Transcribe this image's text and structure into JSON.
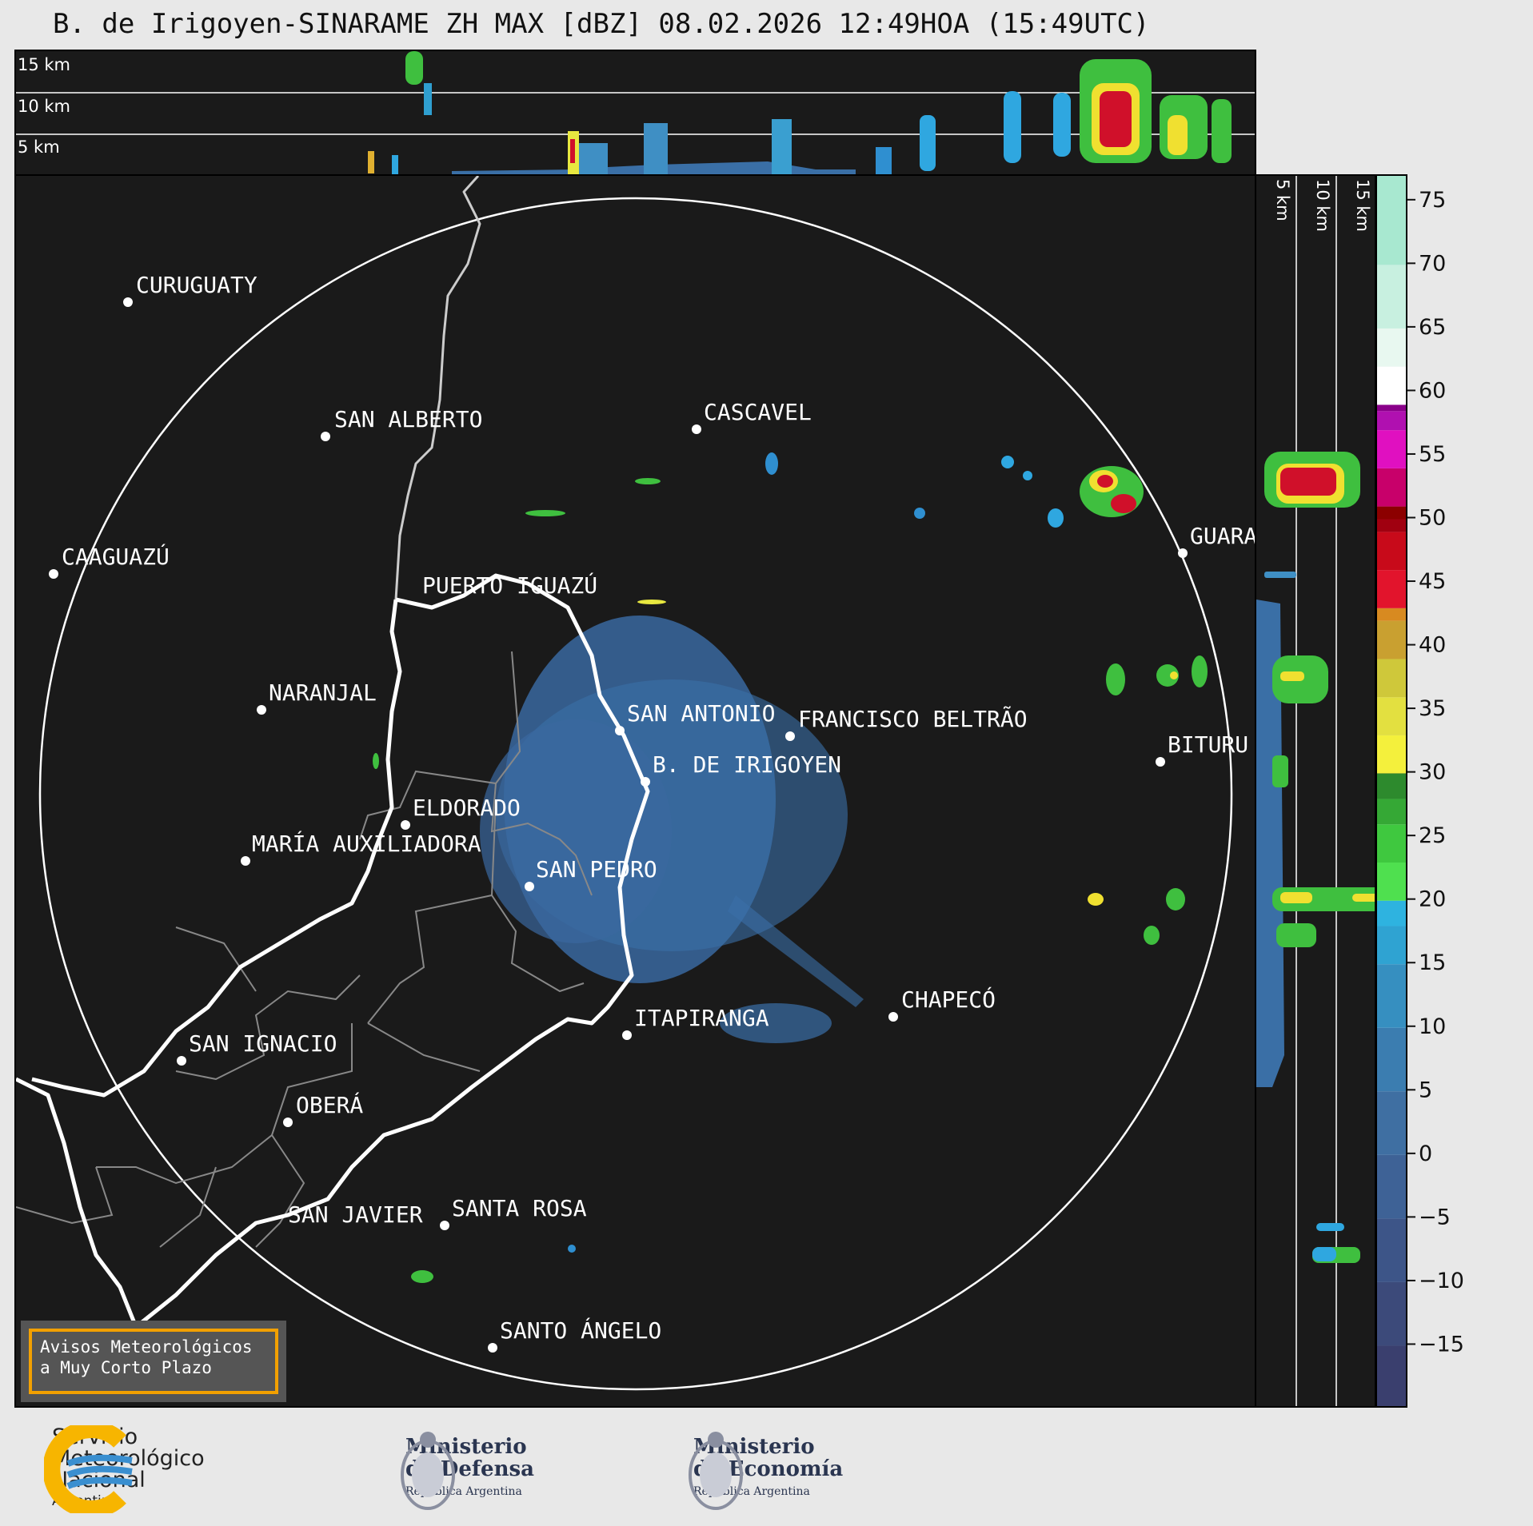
{
  "title": "B. de Irigoyen-SINARAME ZH MAX [dBZ] 08.02.2026 12:49HOA (15:49UTC)",
  "top_panel": {
    "levels": [
      "15 km",
      "10 km",
      "5 km"
    ]
  },
  "side_panel": {
    "levels": [
      "5 km",
      "10 km",
      "15 km"
    ]
  },
  "cities": [
    {
      "name": "CURUGUATY"
    },
    {
      "name": "SAN ALBERTO"
    },
    {
      "name": "CASCAVEL"
    },
    {
      "name": "CAAGUAZÚ"
    },
    {
      "name": "GUARA"
    },
    {
      "name": "PUERTO IGUAZÚ"
    },
    {
      "name": "NARANJAL"
    },
    {
      "name": "SAN ANTONIO"
    },
    {
      "name": "FRANCISCO BELTRÃO"
    },
    {
      "name": "BITURU"
    },
    {
      "name": "B. DE IRIGOYEN"
    },
    {
      "name": "ELDORADO"
    },
    {
      "name": "MARÍA AUXILIADORA"
    },
    {
      "name": "SAN PEDRO"
    },
    {
      "name": "CHAPECÓ"
    },
    {
      "name": "ITAPIRANGA"
    },
    {
      "name": "SAN IGNACIO"
    },
    {
      "name": "OBERÁ"
    },
    {
      "name": "SAN JAVIER"
    },
    {
      "name": "SANTA ROSA"
    },
    {
      "name": "SANTO ÁNGELO"
    }
  ],
  "colorbar": {
    "ticks": [
      "75",
      "70",
      "65",
      "60",
      "55",
      "50",
      "45",
      "40",
      "35",
      "30",
      "25",
      "20",
      "15",
      "10",
      "5",
      "0",
      "−5",
      "−10",
      "−15"
    ],
    "tick_values": [
      75,
      70,
      65,
      60,
      55,
      50,
      45,
      40,
      35,
      30,
      25,
      20,
      15,
      10,
      5,
      0,
      -5,
      -10,
      -15
    ],
    "range": [
      -20,
      77
    ]
  },
  "aviso": {
    "line1": "Avisos Meteorológicos",
    "line2": "a Muy Corto Plazo"
  },
  "footer": {
    "smn": {
      "line1": "Servicio",
      "line2": "Meteorológico",
      "line3": "Nacional",
      "line4": "Argentina"
    },
    "defensa": {
      "line1": "Ministerio",
      "line2": "de Defensa",
      "line3": "República Argentina"
    },
    "economia": {
      "line1": "Ministerio",
      "line2": "de Economía",
      "line3": "República Argentina"
    }
  },
  "colors": {
    "map_bg": "#1a1a1a",
    "aviso_border": "#f2a000",
    "smn_blue": "#3a8fd0",
    "smn_yellow": "#f7b500"
  }
}
